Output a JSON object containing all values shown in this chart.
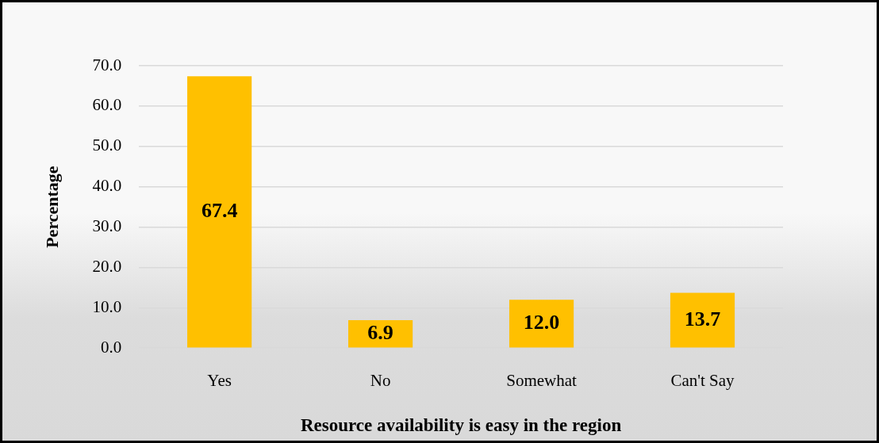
{
  "chart_data": {
    "type": "bar",
    "xlabel": "Resource availability is easy in the region",
    "ylabel": "Percentage",
    "categories": [
      "Yes",
      "No",
      "Somewhat",
      "Can't Say"
    ],
    "values": [
      67.4,
      6.9,
      12.0,
      13.7
    ],
    "value_labels": [
      "67.4",
      "6.9",
      "12.0",
      "13.7"
    ],
    "color": "#ffc000",
    "ylim": [
      0,
      70
    ],
    "yticks": [
      {
        "value": 0,
        "label": "0.0"
      },
      {
        "value": 10,
        "label": "10.0"
      },
      {
        "value": 20,
        "label": "20.0"
      },
      {
        "value": 30,
        "label": "30.0"
      },
      {
        "value": 40,
        "label": "40.0"
      },
      {
        "value": 50,
        "label": "50.0"
      },
      {
        "value": 60,
        "label": "60.0"
      },
      {
        "value": 70,
        "label": "70.0"
      }
    ],
    "grid": "y"
  }
}
